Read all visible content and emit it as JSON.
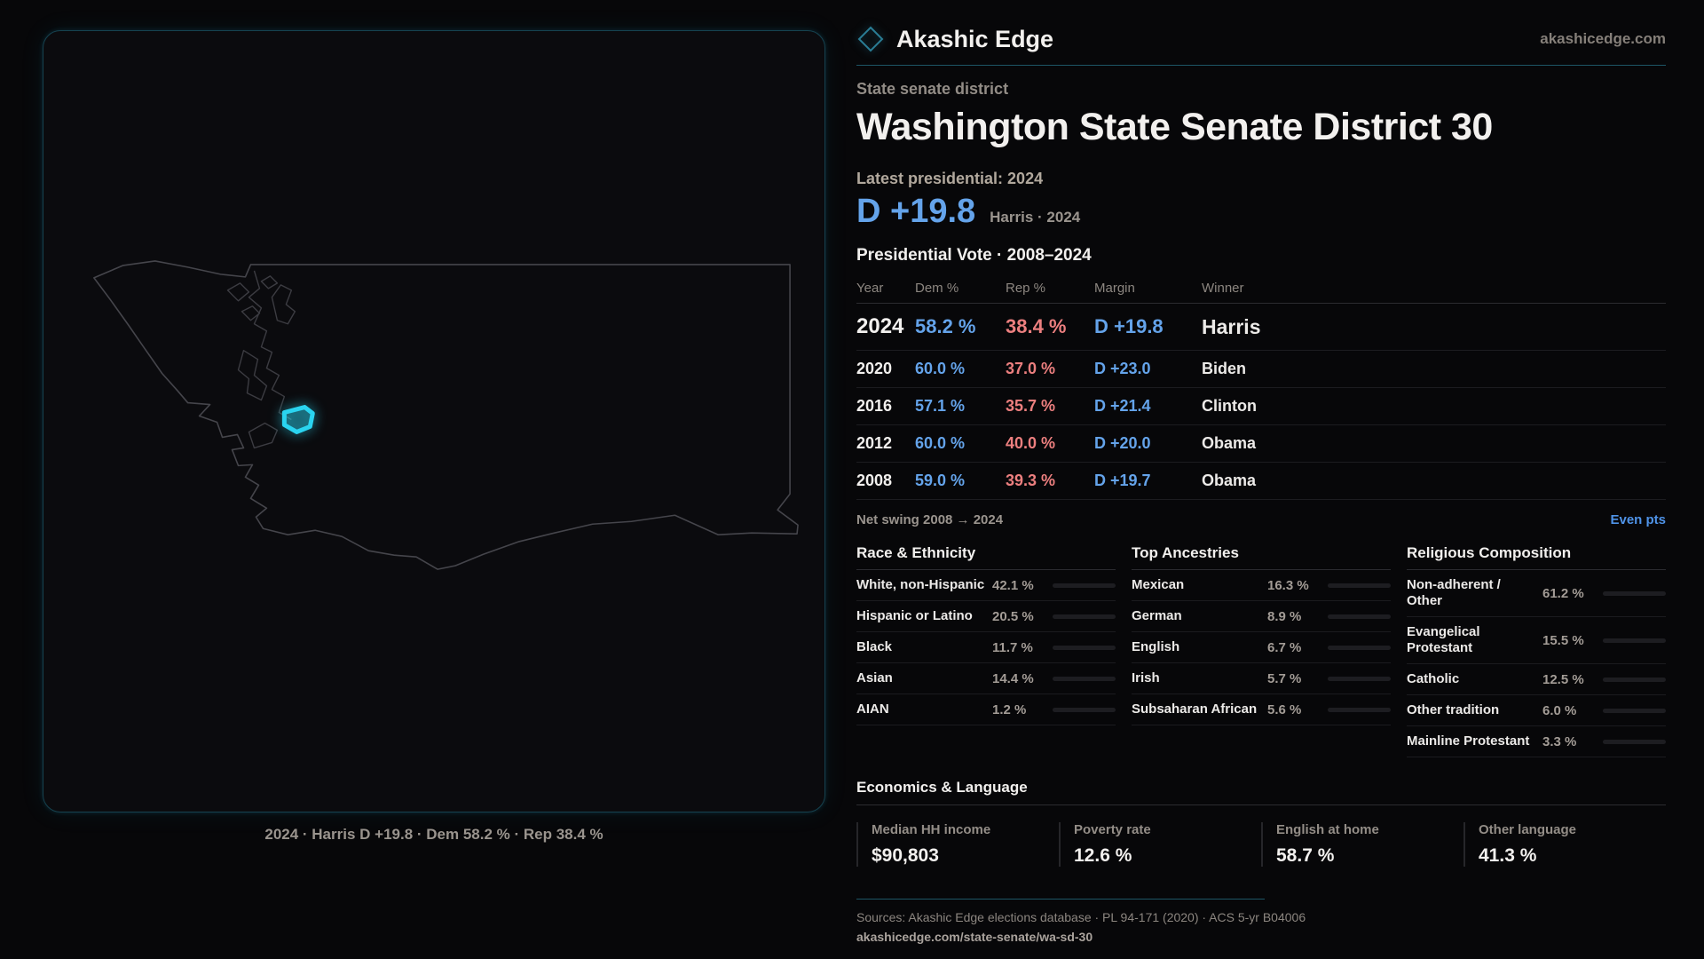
{
  "brand": {
    "name": "Akashic Edge",
    "domain": "akashicedge.com"
  },
  "accent": {
    "teal": "#1d5666",
    "district_cyan": "#2ad4f0",
    "dem_blue": "#64a3ea",
    "rep_red": "#ec7f7f",
    "link_blue": "#4f93e8"
  },
  "map": {
    "caption": "2024 · Harris D +19.8 · Dem 58.2 % · Rep 38.4 %"
  },
  "header": {
    "kicker": "State senate district",
    "title": "Washington State Senate District 30",
    "latest": "Latest presidential: 2024",
    "margin_big": "D +19.8",
    "margin_context": "Harris · 2024"
  },
  "vote_table": {
    "title": "Presidential Vote · 2008–2024",
    "columns": [
      "Year",
      "Dem %",
      "Rep %",
      "Margin",
      "Winner"
    ],
    "rows": [
      {
        "year": "2024",
        "dem": "58.2 %",
        "rep": "38.4 %",
        "margin": "D +19.8",
        "winner": "Harris",
        "big": true
      },
      {
        "year": "2020",
        "dem": "60.0 %",
        "rep": "37.0 %",
        "margin": "D +23.0",
        "winner": "Biden"
      },
      {
        "year": "2016",
        "dem": "57.1 %",
        "rep": "35.7 %",
        "margin": "D +21.4",
        "winner": "Clinton"
      },
      {
        "year": "2012",
        "dem": "60.0 %",
        "rep": "40.0 %",
        "margin": "D +20.0",
        "winner": "Obama"
      },
      {
        "year": "2008",
        "dem": "59.0 %",
        "rep": "39.3 %",
        "margin": "D +19.7",
        "winner": "Obama"
      }
    ]
  },
  "swing": {
    "label": "Net swing 2008 → 2024",
    "link": "Even pts"
  },
  "demographics": [
    {
      "title": "Race & Ethnicity",
      "rows": [
        {
          "label": "White, non-Hispanic",
          "value": "42.1 %",
          "pct": 42.1,
          "color": "#8fa3bf"
        },
        {
          "label": "Hispanic or Latino",
          "value": "20.5 %",
          "pct": 20.5,
          "color": "#e0a13a"
        },
        {
          "label": "Black",
          "value": "11.7 %",
          "pct": 11.7,
          "color": "#a18df2"
        },
        {
          "label": "Asian",
          "value": "14.4 %",
          "pct": 14.4,
          "color": "#2fb98b"
        },
        {
          "label": "AIAN",
          "value": "1.2 %",
          "pct": 1.2,
          "color": "#c2701f"
        }
      ]
    },
    {
      "title": "Top Ancestries",
      "rows": [
        {
          "label": "Mexican",
          "value": "16.3 %",
          "pct": 16.3,
          "color": "#e8a32f"
        },
        {
          "label": "German",
          "value": "8.9 %",
          "pct": 8.9,
          "color": "#8fb0d8"
        },
        {
          "label": "English",
          "value": "6.7 %",
          "pct": 6.7,
          "color": "#8fb0d8"
        },
        {
          "label": "Irish",
          "value": "5.7 %",
          "pct": 5.7,
          "color": "#8fb0d8"
        },
        {
          "label": "Subsaharan African",
          "value": "5.6 %",
          "pct": 5.6,
          "color": "#a18df2"
        }
      ]
    },
    {
      "title": "Religious Composition",
      "rows": [
        {
          "label": "Non-adherent / Other",
          "value": "61.2 %",
          "pct": 61.2,
          "color": "#8693a8"
        },
        {
          "label": "Evangelical Protestant",
          "value": "15.5 %",
          "pct": 15.5,
          "color": "#e87c7c"
        },
        {
          "label": "Catholic",
          "value": "12.5 %",
          "pct": 12.5,
          "color": "#e0b23a"
        },
        {
          "label": "Other tradition",
          "value": "6.0 %",
          "pct": 6.0,
          "color": "#8693a8"
        },
        {
          "label": "Mainline Protestant",
          "value": "3.3 %",
          "pct": 3.3,
          "color": "#5b8fd6"
        }
      ]
    }
  ],
  "economics": {
    "title": "Economics & Language",
    "stats": [
      {
        "label": "Median HH income",
        "value": "$90,803"
      },
      {
        "label": "Poverty rate",
        "value": "12.6 %"
      },
      {
        "label": "English at home",
        "value": "58.7 %"
      },
      {
        "label": "Other language",
        "value": "41.3 %"
      }
    ]
  },
  "footer": {
    "sources": "Sources: Akashic Edge elections database · PL 94-171 (2020) · ACS 5-yr B04006",
    "link": "akashicedge.com/state-senate/wa-sd-30"
  }
}
